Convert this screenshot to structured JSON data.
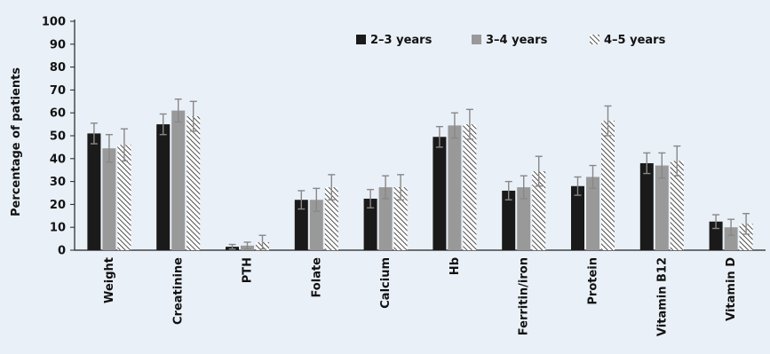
{
  "chart_data": {
    "type": "bar",
    "title": "",
    "ylabel": "Percentage of patients",
    "xlabel": "",
    "ylim": [
      0,
      100
    ],
    "yticks": [
      0,
      10,
      20,
      30,
      40,
      50,
      60,
      70,
      80,
      90,
      100
    ],
    "grid": false,
    "legend_position": "top-right",
    "categories": [
      "Weight",
      "Creatinine",
      "PTH",
      "Folate",
      "Calcium",
      "Hb",
      "Ferritin/iron",
      "Protein",
      "Vitamin B12",
      "Vitamin D"
    ],
    "series": [
      {
        "name": "2–3 years",
        "style": "solid",
        "color": "#1a1a1a",
        "values": [
          51,
          55,
          1.5,
          22,
          22.5,
          49.5,
          26,
          28,
          38,
          12.5
        ],
        "error": [
          4.5,
          4.5,
          1.0,
          4.0,
          4.0,
          4.5,
          4.0,
          4.0,
          4.5,
          3.0
        ]
      },
      {
        "name": "3–4 years",
        "style": "solid",
        "color": "#999999",
        "values": [
          44.5,
          61,
          2,
          22,
          27.5,
          54.5,
          27.5,
          32,
          37,
          10
        ],
        "error": [
          6.0,
          5.0,
          1.5,
          5.0,
          5.0,
          5.5,
          5.0,
          5.0,
          5.5,
          3.5
        ]
      },
      {
        "name": "4–5 years",
        "style": "hatched",
        "color": "#ffffff",
        "values": [
          46,
          58.5,
          3.5,
          27.5,
          27.5,
          55,
          34.5,
          56.5,
          39,
          11.5
        ],
        "error": [
          7.0,
          6.5,
          3.0,
          5.5,
          5.5,
          6.5,
          6.5,
          6.5,
          6.5,
          4.5
        ]
      }
    ]
  },
  "colors": {
    "background": "#eaf0f8",
    "axis": "#222222",
    "error_bar": "#888888",
    "hatch": "#222222"
  }
}
